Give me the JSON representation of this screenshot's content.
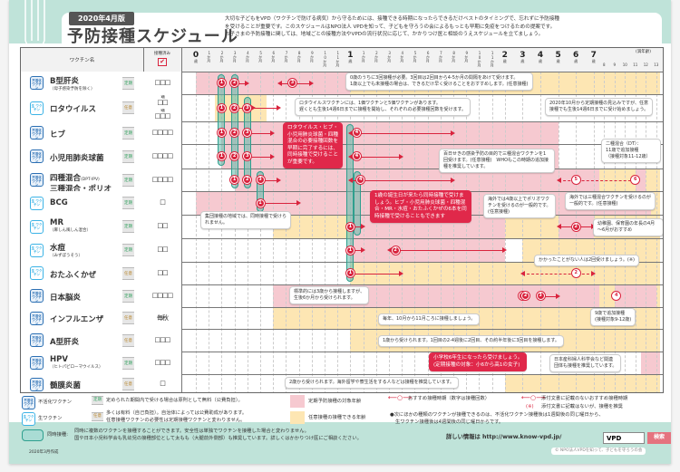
{
  "header": {
    "edition": "2020年4月版",
    "title": "予防接種スケジュール",
    "description": [
      "大切な子どもをVPD（ワクチンで防げる病気）から守るためには、接種できる時期になったらできるだけベストのタイミングで、忘れずに予防接種",
      "を受けることが重要です。このスケジュールはNPO法人 VPDを知って、子どもを守ろうの会によるもっとも早期に免疫をつけるための提案です。",
      "お子さまの予防接種に関しては、地域ごとの接種方法やVPDの流行状況に応じて、かかりつけ医と相談のうえスケジュールを立てましょう。"
    ]
  },
  "table": {
    "col_vaccine": "ワクチン名",
    "col_done": "接種済み",
    "done_check": "✔",
    "age_note": "(満年齢)",
    "timeline": [
      {
        "age": 0,
        "big": "0",
        "unit": "歳"
      },
      {
        "age": 1,
        "unit": "1か月"
      },
      {
        "age": 2,
        "unit": "2か月"
      },
      {
        "age": 3,
        "unit": "3か月"
      },
      {
        "age": 4,
        "unit": "4か月"
      },
      {
        "age": 5,
        "unit": "5か月"
      },
      {
        "age": 6,
        "unit": "6か月"
      },
      {
        "age": 7,
        "unit": "7か月"
      },
      {
        "age": 8,
        "unit": "8か月"
      },
      {
        "age": 9,
        "unit": "9か月"
      },
      {
        "age": 10,
        "unit": "10か月"
      },
      {
        "age": 11,
        "unit": "11か月"
      },
      {
        "age": 12,
        "big": "1",
        "unit": "歳"
      },
      {
        "age": 13,
        "unit": "1か月"
      },
      {
        "age": 14,
        "unit": "2か月"
      },
      {
        "age": 15,
        "unit": "3か月"
      },
      {
        "age": 16,
        "unit": "4か月"
      },
      {
        "age": 17,
        "unit": "5か月"
      },
      {
        "age": 18,
        "unit": "6か月"
      },
      {
        "age": 19,
        "unit": "7か月"
      },
      {
        "age": 20,
        "unit": "8か月"
      },
      {
        "age": 21,
        "unit": "9か月"
      },
      {
        "age": 22,
        "unit": "10か月"
      },
      {
        "age": 23,
        "unit": "11か月"
      },
      {
        "age": 24,
        "big": "2",
        "unit": "歳"
      },
      {
        "age": 36,
        "big": "3",
        "unit": "歳"
      },
      {
        "age": 48,
        "big": "4",
        "unit": "歳"
      },
      {
        "age": 60,
        "big": "5",
        "unit": "歳"
      },
      {
        "age": 72,
        "big": "6",
        "unit": "歳"
      },
      {
        "age": 84,
        "big": "7",
        "unit": "歳"
      },
      {
        "age": 96,
        "unit": "8"
      },
      {
        "age": 108,
        "unit": "9"
      },
      {
        "age": 120,
        "unit": "10"
      },
      {
        "age": 132,
        "unit": "11"
      },
      {
        "age": 144,
        "unit": "12"
      },
      {
        "age": 156,
        "unit": "13"
      }
    ],
    "icon_labels": {
      "inactivated": "不活化 ワクチン",
      "live": "生 ワクチン"
    },
    "rows": [
      {
        "name": "B型肝炎",
        "sub": "（母子感染予防を除く）",
        "type": "inactivated",
        "badge": "定期",
        "boxes": "□□□",
        "shade": [
          {
            "c": "pink",
            "from": 0,
            "to": 12
          },
          {
            "c": "yellow",
            "from": 12,
            "to": 160
          }
        ]
      },
      {
        "name": "ロタウイルス",
        "type": "live",
        "badge": "任意",
        "boxes_split": [
          {
            "label": "1価",
            "boxes": "□□"
          },
          {
            "label": "5価",
            "boxes": "□□□"
          }
        ],
        "shade": [
          {
            "c": "yellow",
            "from": 1.5,
            "to": 5.5
          }
        ]
      },
      {
        "name": "ヒブ",
        "type": "inactivated",
        "badge": "定期",
        "boxes": "□□□□",
        "shade": [
          {
            "c": "pink",
            "from": 2,
            "to": 60
          }
        ]
      },
      {
        "name": "小児用肺炎球菌",
        "type": "inactivated",
        "badge": "定期",
        "boxes": "□□□□",
        "shade": [
          {
            "c": "pink",
            "from": 2,
            "to": 60
          }
        ]
      },
      {
        "name": "四種混合",
        "name_suffix": "(DPT-IPV)",
        "name2": "三種混合・ポリオ",
        "type": "inactivated",
        "badge": "定期",
        "boxes": "□□□□",
        "shade": [
          {
            "c": "pink",
            "from": 3,
            "to": 90
          },
          {
            "c": "yellow",
            "from": 90,
            "to": 132
          },
          {
            "c": "pink",
            "from": 132,
            "to": 144
          },
          {
            "c": "yellow",
            "from": 144,
            "to": 160
          }
        ]
      },
      {
        "name": "BCG",
        "type": "live",
        "badge": "定期",
        "boxes": "□",
        "shade": [
          {
            "c": "pink",
            "from": 0,
            "to": 12
          },
          {
            "c": "pink",
            "from": 12,
            "to": 150
          },
          {
            "c": "yellow",
            "from": 150,
            "to": 160
          }
        ]
      },
      {
        "name": "MR",
        "sub": "（麻しん風しん混合）",
        "type": "live",
        "badge": "定期",
        "boxes": "□□",
        "shade": [
          {
            "c": "yellow",
            "from": 6,
            "to": 12
          },
          {
            "c": "pink",
            "from": 12,
            "to": 24
          },
          {
            "c": "yellow",
            "from": 24,
            "to": 60
          },
          {
            "c": "pink",
            "from": 60,
            "to": 84
          },
          {
            "c": "yellow",
            "from": 84,
            "to": 160
          }
        ]
      },
      {
        "name": "水痘",
        "sub": "（みずぼうそう）",
        "type": "live",
        "badge": "定期",
        "boxes": "□□",
        "shade": [
          {
            "c": "pink",
            "from": 12,
            "to": 24
          },
          {
            "c": "yellow",
            "from": 36,
            "to": 160
          }
        ]
      },
      {
        "name": "おたふくかぜ",
        "type": "live",
        "badge": "任意",
        "boxes": "□□",
        "shade": [
          {
            "c": "yellow",
            "from": 12,
            "to": 160
          }
        ]
      },
      {
        "name": "日本脳炎",
        "type": "inactivated",
        "badge": "定期",
        "boxes": "□□□□",
        "shade": [
          {
            "c": "pink",
            "from": 6,
            "to": 90
          },
          {
            "c": "yellow",
            "from": 90,
            "to": 108
          },
          {
            "c": "pink",
            "from": 108,
            "to": 156
          },
          {
            "c": "yellow",
            "from": 156,
            "to": 160
          }
        ]
      },
      {
        "name": "インフルエンザ",
        "type": "inactivated",
        "badge": "任意",
        "boxes": "毎秋",
        "shade": [
          {
            "c": "yellow",
            "from": 6,
            "to": 160
          }
        ]
      },
      {
        "name": "A型肝炎",
        "type": "inactivated",
        "badge": "任意",
        "boxes": "□□□",
        "shade": [
          {
            "c": "yellow",
            "from": 12,
            "to": 160
          }
        ]
      },
      {
        "name": "HPV",
        "sub": "（ヒトパピローマウイルス）",
        "type": "inactivated",
        "badge": "定期",
        "boxes": "□□□",
        "shade": [
          {
            "c": "pink",
            "from": 138,
            "to": 160
          }
        ]
      },
      {
        "name": "髄膜炎菌",
        "type": "inactivated",
        "badge": "任意",
        "boxes": "□",
        "shade": [
          {
            "c": "yellow",
            "from": 24,
            "to": 160
          }
        ]
      }
    ],
    "simultaneous": [
      {
        "age": 2,
        "from": 0,
        "to": 3
      },
      {
        "age": 3,
        "from": 0,
        "to": 4
      },
      {
        "age": 4,
        "from": 1,
        "to": 4
      },
      {
        "age": 5,
        "from": 4,
        "to": 5
      },
      {
        "age": 12,
        "from": 2,
        "to": 8
      },
      {
        "age": 12.5,
        "from": 4,
        "to": 6
      }
    ],
    "doses": [
      {
        "row": 0,
        "age": 2,
        "n": "1"
      },
      {
        "row": 0,
        "age": 3,
        "n": "2"
      },
      {
        "row": 0,
        "age": 7.5,
        "n": "3"
      },
      {
        "row": 1,
        "age": 2,
        "n": "1"
      },
      {
        "row": 1,
        "age": 3,
        "n": "2"
      },
      {
        "row": 1,
        "age": 4,
        "n": "3"
      },
      {
        "row": 2,
        "age": 2,
        "n": "1"
      },
      {
        "row": 2,
        "age": 3,
        "n": "2"
      },
      {
        "row": 2,
        "age": 4,
        "n": "3"
      },
      {
        "row": 2,
        "age": 12.5,
        "n": "4"
      },
      {
        "row": 3,
        "age": 2,
        "n": "1"
      },
      {
        "row": 3,
        "age": 3,
        "n": "2"
      },
      {
        "row": 3,
        "age": 4,
        "n": "3"
      },
      {
        "row": 3,
        "age": 12.5,
        "n": "4"
      },
      {
        "row": 4,
        "age": 3,
        "n": "1"
      },
      {
        "row": 4,
        "age": 4,
        "n": "2"
      },
      {
        "row": 4,
        "age": 5,
        "n": "3"
      },
      {
        "row": 4,
        "age": 12.8,
        "n": "4"
      },
      {
        "row": 4,
        "age": 72,
        "n": "5",
        "hollow": true
      },
      {
        "row": 4,
        "age": 132,
        "n": "6",
        "hollow": true
      },
      {
        "row": 5,
        "age": 5,
        "n": "1"
      },
      {
        "row": 6,
        "age": 12,
        "n": "1"
      },
      {
        "row": 6,
        "age": 72,
        "n": "2"
      },
      {
        "row": 7,
        "age": 12,
        "n": "1"
      },
      {
        "row": 7,
        "age": 15.5,
        "n": "2"
      },
      {
        "row": 8,
        "age": 12,
        "n": "1"
      },
      {
        "row": 8,
        "age": 72,
        "n": "2",
        "hollow": true
      },
      {
        "row": 9,
        "age": 36,
        "n": "1"
      },
      {
        "row": 9,
        "age": 38,
        "n": "2"
      },
      {
        "row": 9,
        "age": 48,
        "n": "3"
      },
      {
        "row": 9,
        "age": 110,
        "n": "4",
        "hollow": true
      }
    ],
    "arrows": [
      {
        "row": 0,
        "from": 3,
        "to": 4,
        "r": true
      },
      {
        "row": 0,
        "from": 6.5,
        "to": 9,
        "l": true,
        "r": true
      },
      {
        "row": 1,
        "from": 3,
        "to": 4.5,
        "r": true
      },
      {
        "row": 1,
        "from": 4,
        "to": 6.5,
        "r": true
      },
      {
        "row": 2,
        "from": 4,
        "to": 6,
        "r": true
      },
      {
        "row": 2,
        "from": 12,
        "to": 20,
        "l": true,
        "r": true
      },
      {
        "row": 3,
        "from": 4,
        "to": 6,
        "r": true
      },
      {
        "row": 3,
        "from": 12,
        "to": 16,
        "l": true,
        "r": true
      },
      {
        "row": 4,
        "from": 5,
        "to": 6.5,
        "r": true
      },
      {
        "row": 4,
        "from": 12,
        "to": 20,
        "l": true,
        "r": true
      },
      {
        "row": 4,
        "from": 60,
        "to": 132,
        "l": true,
        "r": true,
        "dash": true
      },
      {
        "row": 5,
        "from": 5,
        "to": 8,
        "r": true
      },
      {
        "row": 6,
        "from": 12,
        "to": 13,
        "r": true
      },
      {
        "row": 6,
        "from": 60,
        "to": 84,
        "l": true,
        "r": true
      },
      {
        "row": 7,
        "from": 12,
        "to": 13,
        "r": true
      },
      {
        "row": 7,
        "from": 15,
        "to": 24,
        "l": true,
        "r": true
      },
      {
        "row": 8,
        "from": 12,
        "to": 16,
        "r": true
      },
      {
        "row": 8,
        "from": 36,
        "to": 84,
        "l": true,
        "r": true,
        "dash": true
      },
      {
        "row": 9,
        "from": 48,
        "to": 60,
        "r": true
      }
    ],
    "notes": {
      "hepb": [
        "0歳のうちに3回接種が必要。3回目は2回目から4-5か月の間隔をあけて受けます。",
        "1歳以上でも未接種の場合は、できるだけ早く受けることをおすすめします。(任意接種)"
      ],
      "rota": [
        "ロタウイルスワクチンには、1価ワクチンと5価ワクチンがあります。",
        "遅くとも生後14週6日までに接種を開始し、それぞれの必要接種回数を受けます。"
      ],
      "rota_right": [
        "2020年10月から定期接種の見込みですが、任意",
        "接種でも生後14週6日までに受け始めましょう。"
      ],
      "early_red": "ロタウイルス・ヒブ・小児用肺炎球菌・四種混合の必要接種回数を早期に完了するには、同時接種で受けることが重要です。",
      "dpt": "百日せきの感染予防の目的で三種混合ワクチンを1回受けます。(任意接種)　WHOもこの時期の追加接種を推奨しています。",
      "dt": [
        "二種混合（DT）：",
        "11歳で追加接種",
        "（接種対象11-12歳）"
      ],
      "birthday_red": "1歳の誕生日が来たら同時接種で受けましょう。ヒブ・小児用肺炎球菌・四種混合・MR・水痘・おたふくかぜの6本を同時接種で受けることもできます",
      "polio": "海外では4歳以上でポリオワクチンを受けるのが一般的です。(任意接種)",
      "tdap": "海外では三種混合ワクチンを受けるのが一般的です。(任意接種)",
      "bcg": "集団接種の地域では、同時接種で受けられません。",
      "mr": "幼稚園、保育園の年長の4月～6月がおすすめ",
      "varicella": "かかったことがない人は2回受けましょう。(※)",
      "je": [
        "標準的には3歳から接種しますが、",
        "生後6か月から受けられます。"
      ],
      "je_right": [
        "9歳で追加接種",
        "(接種対象9-12歳)"
      ],
      "flu": "毎年、10月から11月ころに接種しましょう。",
      "hepa": "1歳から受けられます。1回目の2-4週後に2回目、その約半年後に3回目を接種します。",
      "hpv_red": [
        "小学校6年生になったら受けましょう。",
        "(定期接種の対象：小6から高1の女子)"
      ],
      "hpv": [
        "日本産科婦人科学会など関連",
        "団体も接種を推奨しています。"
      ],
      "mening": "2歳から受けられます。海外留学や寮生活をする人などは接種を推奨しています。"
    }
  },
  "legend": {
    "inactivated": "不活化ワクチン",
    "live": "生ワクチン",
    "teiki": "定期",
    "teiki_text": "定められた期間内で受ける場合は原則として無料（公費負担）。",
    "nini": "任意",
    "nini_text": [
      "多くは有料（自己負担）。自治体によっては公費助成があります。",
      "任意接種ワクチンの必要性は定期接種ワクチンと変わりません。"
    ],
    "pink": "定期予防接種の対象年齢",
    "yellow": "任意接種の接種できる年齢",
    "rec": "おすすめ接種時期（数字は接種回数）",
    "rec_off": "添付文書に記載のないおすすめ接種時期",
    "note_mark": "(※)",
    "note_text": "添付文書に記載はないが、接種を推奨",
    "interval": [
      "●次にほかの種類のワクチンが接種できるのは、不活化ワクチン接種後は1週間後の同じ曜日から、",
      "生ワクチン接種後は4週間後の同じ曜日からです。"
    ],
    "simul": "同時接種:",
    "simul_text": [
      "同時に複数のワクチンを接種することができます。安全性は単独でワクチンを接種した場合と変わりません。",
      "国や日本小児科学会も乳幼児の接種部位として太もも（大腿前外側部）も推奨しています。詳しくはかかりつけ医にご相談ください。"
    ],
    "info": "詳しい情報は http://www.know-vpd.jp/",
    "search_value": "VPD",
    "search_button": "検索"
  },
  "footer": {
    "created": "2020年3月作成",
    "copyright": "© NPO法人VPDを知って、子どもを守ろうの会"
  },
  "colors": {
    "pink": "#f6c9d0",
    "yellow": "#fde6b3",
    "teal": "#5eb9aa",
    "red": "#d9233d",
    "inactivated": "#2b6fb3",
    "live": "#3bb3e6"
  }
}
